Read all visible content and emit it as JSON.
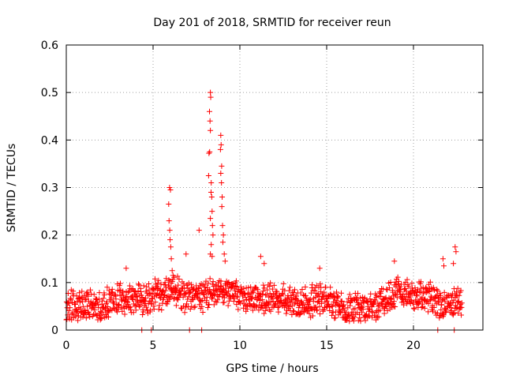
{
  "chart_data": {
    "type": "scatter",
    "title": "Day 201 of 2018, SRMTID for receiver reun",
    "xlabel": "GPS time / hours",
    "ylabel": "SRMTID / TECUs",
    "xlim": [
      0,
      24
    ],
    "ylim": [
      0,
      0.6
    ],
    "x_ticks": [
      0,
      5,
      10,
      15,
      20
    ],
    "x_tick_labels": [
      "0",
      "5",
      "10",
      "15",
      "20"
    ],
    "y_ticks": [
      0,
      0.1,
      0.2,
      0.3,
      0.4,
      0.5,
      0.6
    ],
    "y_tick_labels": [
      "0",
      "0.1",
      "0.2",
      "0.3",
      "0.4",
      "0.5",
      "0.6"
    ],
    "grid": true,
    "marker": "+",
    "series": [
      {
        "name": "SRMTID",
        "color": "#ff0000",
        "baseline_profile": [
          [
            0.0,
            0.048
          ],
          [
            1.0,
            0.055
          ],
          [
            2.0,
            0.05
          ],
          [
            3.0,
            0.065
          ],
          [
            4.0,
            0.065
          ],
          [
            5.0,
            0.07
          ],
          [
            6.0,
            0.085
          ],
          [
            7.0,
            0.07
          ],
          [
            8.0,
            0.075
          ],
          [
            9.0,
            0.085
          ],
          [
            10.0,
            0.065
          ],
          [
            11.0,
            0.07
          ],
          [
            12.0,
            0.065
          ],
          [
            13.0,
            0.06
          ],
          [
            14.0,
            0.06
          ],
          [
            15.0,
            0.065
          ],
          [
            16.0,
            0.045
          ],
          [
            17.0,
            0.045
          ],
          [
            18.0,
            0.055
          ],
          [
            19.0,
            0.075
          ],
          [
            20.0,
            0.07
          ],
          [
            21.0,
            0.065
          ],
          [
            22.0,
            0.055
          ],
          [
            22.8,
            0.06
          ]
        ],
        "peak_points": [
          [
            5.95,
            0.3
          ],
          [
            6.0,
            0.295
          ],
          [
            5.9,
            0.265
          ],
          [
            5.92,
            0.23
          ],
          [
            5.96,
            0.21
          ],
          [
            5.98,
            0.19
          ],
          [
            6.02,
            0.175
          ],
          [
            6.05,
            0.15
          ],
          [
            6.1,
            0.125
          ],
          [
            6.15,
            0.115
          ],
          [
            8.3,
            0.5
          ],
          [
            8.32,
            0.49
          ],
          [
            8.25,
            0.46
          ],
          [
            8.28,
            0.44
          ],
          [
            8.3,
            0.42
          ],
          [
            8.22,
            0.372
          ],
          [
            8.26,
            0.375
          ],
          [
            8.2,
            0.325
          ],
          [
            8.35,
            0.31
          ],
          [
            8.34,
            0.29
          ],
          [
            8.38,
            0.28
          ],
          [
            8.4,
            0.25
          ],
          [
            8.3,
            0.235
          ],
          [
            8.42,
            0.22
          ],
          [
            8.45,
            0.2
          ],
          [
            8.35,
            0.18
          ],
          [
            8.3,
            0.16
          ],
          [
            8.4,
            0.155
          ],
          [
            7.65,
            0.21
          ],
          [
            8.9,
            0.41
          ],
          [
            8.92,
            0.39
          ],
          [
            8.88,
            0.38
          ],
          [
            8.95,
            0.345
          ],
          [
            8.9,
            0.33
          ],
          [
            8.94,
            0.31
          ],
          [
            8.98,
            0.28
          ],
          [
            8.96,
            0.26
          ],
          [
            9.0,
            0.22
          ],
          [
            9.05,
            0.2
          ],
          [
            9.02,
            0.185
          ],
          [
            9.1,
            0.16
          ],
          [
            9.15,
            0.145
          ],
          [
            11.2,
            0.155
          ],
          [
            11.4,
            0.14
          ],
          [
            3.45,
            0.13
          ],
          [
            6.9,
            0.16
          ],
          [
            18.9,
            0.145
          ],
          [
            21.7,
            0.15
          ],
          [
            21.75,
            0.135
          ],
          [
            22.4,
            0.175
          ],
          [
            22.45,
            0.165
          ],
          [
            22.3,
            0.14
          ],
          [
            14.6,
            0.13
          ]
        ],
        "zero_points": [
          4.35,
          4.9,
          7.1,
          7.8,
          21.4,
          22.35
        ]
      }
    ]
  }
}
